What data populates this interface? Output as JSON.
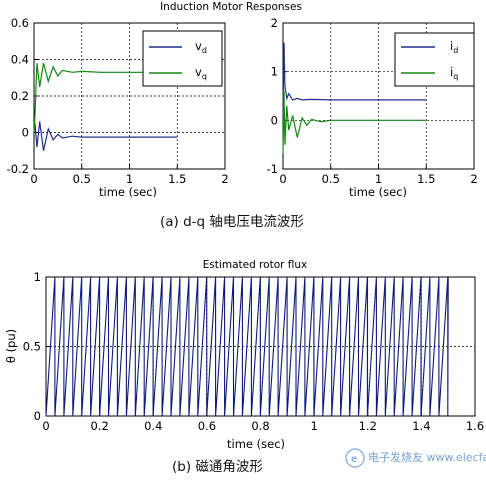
{
  "colors": {
    "vd": "#1f2f8a",
    "vq": "#118811",
    "flux": "#0a1a7a",
    "watermark": "#8ab4e0"
  },
  "chart_data": [
    {
      "type": "line",
      "title": "Induction Motor Responses",
      "xlabel": "time (sec)",
      "ylabel": "",
      "xlim": [
        0,
        2
      ],
      "ylim": [
        -0.2,
        0.6
      ],
      "xticks": [
        "0",
        "0.5",
        "1",
        "1.5",
        "2"
      ],
      "yticks": [
        "-0.2",
        "0",
        "0.2",
        "0.4",
        "0.6"
      ],
      "grid": true,
      "legend_position": "top-right",
      "series": [
        {
          "name": "vd",
          "x": [
            0,
            0.01,
            0.03,
            0.06,
            0.1,
            0.15,
            0.2,
            0.25,
            0.3,
            0.4,
            0.5,
            0.7,
            1.0,
            1.5
          ],
          "y": [
            0.0,
            0.05,
            -0.08,
            0.06,
            -0.1,
            0.02,
            -0.04,
            -0.01,
            -0.03,
            -0.02,
            -0.025,
            -0.025,
            -0.025,
            -0.025
          ]
        },
        {
          "name": "vq",
          "x": [
            0,
            0.01,
            0.03,
            0.06,
            0.1,
            0.15,
            0.2,
            0.25,
            0.3,
            0.4,
            0.5,
            0.7,
            1.0,
            1.5
          ],
          "y": [
            0.0,
            0.1,
            0.38,
            0.25,
            0.38,
            0.28,
            0.36,
            0.31,
            0.34,
            0.33,
            0.335,
            0.33,
            0.33,
            0.33
          ]
        }
      ]
    },
    {
      "type": "line",
      "title": "",
      "xlabel": "time (sec)",
      "ylabel": "",
      "xlim": [
        0,
        2
      ],
      "ylim": [
        -1,
        2
      ],
      "xticks": [
        "0",
        "0.5",
        "1",
        "1.5",
        "2"
      ],
      "yticks": [
        "-1",
        "0",
        "1",
        "2"
      ],
      "grid": true,
      "legend_position": "top-right",
      "series": [
        {
          "name": "id",
          "x": [
            0,
            0.01,
            0.02,
            0.04,
            0.06,
            0.1,
            0.15,
            0.2,
            0.3,
            0.5,
            1.0,
            1.5
          ],
          "y": [
            0.0,
            1.6,
            0.7,
            0.45,
            0.55,
            0.42,
            0.45,
            0.42,
            0.43,
            0.42,
            0.42,
            0.42
          ]
        },
        {
          "name": "iq",
          "x": [
            0,
            0.01,
            0.02,
            0.04,
            0.06,
            0.1,
            0.15,
            0.2,
            0.25,
            0.3,
            0.4,
            0.5,
            1.0,
            1.5
          ],
          "y": [
            -0.7,
            0.6,
            -0.5,
            0.3,
            -0.2,
            0.1,
            -0.35,
            0.05,
            -0.1,
            0.02,
            -0.03,
            0.0,
            0.0,
            0.0
          ]
        }
      ]
    },
    {
      "type": "line",
      "title": "Estimated rotor flux",
      "xlabel": "time (sec)",
      "ylabel": "θ (pu)",
      "xlim": [
        0,
        1.6
      ],
      "ylim": [
        0,
        1
      ],
      "xticks": [
        "0",
        "0.2",
        "0.4",
        "0.6",
        "0.8",
        "1",
        "1.2",
        "1.4",
        "1.6"
      ],
      "yticks": [
        "0",
        "0.5",
        "1"
      ],
      "grid": true,
      "series": [
        {
          "name": "theta",
          "pattern": "sawtooth",
          "x_start": 0.0,
          "x_end": 1.5,
          "period": 0.0333,
          "min": 0,
          "max": 1
        }
      ]
    }
  ],
  "legend1": {
    "vd_main": "v",
    "vd_sub": "d",
    "vq_main": "v",
    "vq_sub": "q"
  },
  "legend2": {
    "id_main": "i",
    "id_sub": "d",
    "iq_main": "i",
    "iq_sub": "q"
  },
  "captions": {
    "a": "(a)  d-q 轴电压电流波形",
    "b": "(b)  磁通角波形"
  },
  "watermark": "电子发烧友 www.elecfans.com"
}
